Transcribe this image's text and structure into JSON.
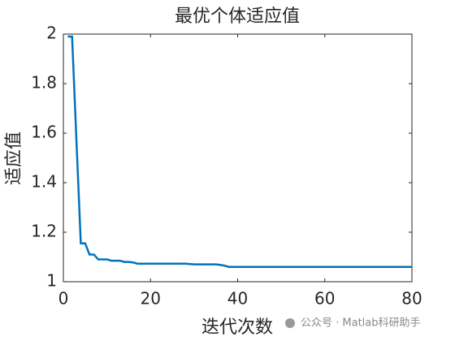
{
  "chart_data": {
    "type": "line",
    "title": "最优个体适应值",
    "x_label": "迭代次数",
    "y_label": "适应值",
    "x": [
      1,
      2,
      3,
      4,
      5,
      6,
      7,
      8,
      9,
      10,
      11,
      12,
      13,
      14,
      15,
      16,
      17,
      18,
      28,
      30,
      35,
      36,
      37,
      38,
      80
    ],
    "series": [
      {
        "name": "适应值",
        "color": "#0072bd",
        "values": [
          1.99,
          1.99,
          1.57,
          1.155,
          1.155,
          1.11,
          1.11,
          1.09,
          1.09,
          1.09,
          1.085,
          1.085,
          1.085,
          1.08,
          1.08,
          1.078,
          1.073,
          1.073,
          1.073,
          1.07,
          1.07,
          1.068,
          1.065,
          1.06,
          1.06
        ]
      }
    ],
    "xlim": [
      0,
      80
    ],
    "xticks": [
      0,
      20,
      40,
      60,
      80
    ],
    "ylim": [
      1,
      2
    ],
    "yticks": [
      1,
      1.2,
      1.4,
      1.6,
      1.8,
      2
    ],
    "watermark": "公众号 · Matlab科研助手"
  }
}
